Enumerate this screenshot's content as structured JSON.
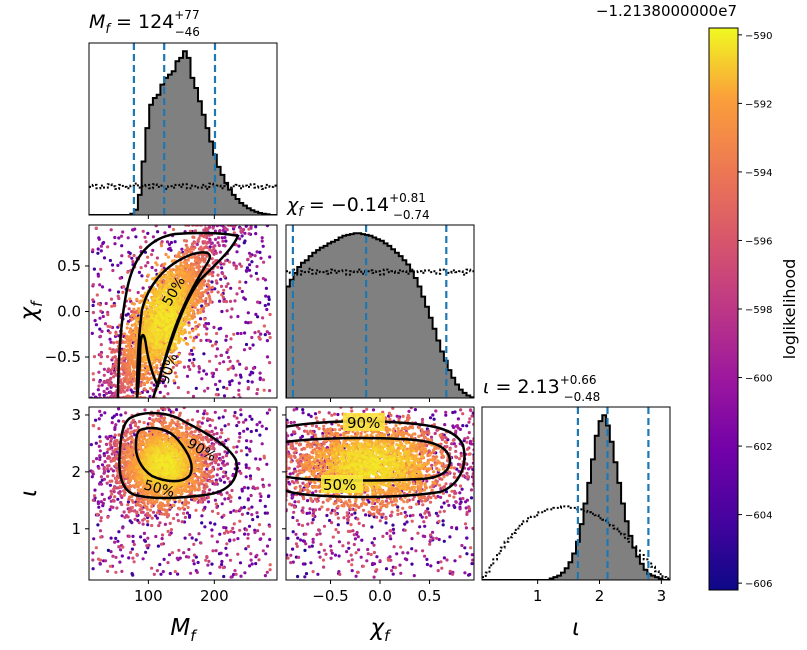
{
  "chart_data": {
    "type": "corner",
    "colorbar": {
      "label": "loglikelihood",
      "offset_text": "−1.2138000000e7",
      "ticks": [
        "−590",
        "−592",
        "−594",
        "−596",
        "−598",
        "−600",
        "−602",
        "−604",
        "−606"
      ],
      "range": [
        -606.2,
        -589.8
      ]
    },
    "params": [
      {
        "key": "Mf",
        "range": [
          10,
          295
        ],
        "ticks": [
          100,
          200
        ],
        "tick_labels": [
          "100",
          "200"
        ],
        "median": 124,
        "plus": 77,
        "minus": 46,
        "title_pre": "M",
        "title_sub": "f",
        "title_val": " = 124",
        "sup": "+77",
        "subv": "−46",
        "axis_sym": "M",
        "axis_sub": "f"
      },
      {
        "key": "chif",
        "range": [
          -0.95,
          0.95
        ],
        "ticks": [
          -0.5,
          0.0,
          0.5
        ],
        "tick_labels": [
          "−0.5",
          "0.0",
          "0.5"
        ],
        "median": -0.14,
        "plus": 0.81,
        "minus": 0.74,
        "title_pre": "χ",
        "title_sub": "f",
        "title_val": " = −0.14",
        "sup": "+0.81",
        "subv": "−0.74",
        "axis_sym": "χ",
        "axis_sub": "f"
      },
      {
        "key": "iota",
        "range": [
          0.1,
          3.14
        ],
        "ticks": [
          1,
          2,
          3
        ],
        "tick_labels": [
          "1",
          "2",
          "3"
        ],
        "median": 2.13,
        "plus": 0.66,
        "minus": 0.48,
        "title_pre": "ι",
        "title_sub": "",
        "title_val": " = 2.13",
        "sup": "+0.66",
        "subv": "−0.48",
        "axis_sym": "ι",
        "axis_sub": ""
      }
    ],
    "y_ticks": {
      "chif": [
        "0.5",
        "0.0",
        "−0.5"
      ],
      "iota": [
        "3",
        "2",
        "1"
      ]
    },
    "quantile_lines": {
      "Mf": [
        78,
        124,
        201
      ],
      "chif": [
        -0.88,
        -0.14,
        0.67
      ],
      "iota": [
        1.65,
        2.13,
        2.79
      ]
    },
    "contour_labels": [
      "50%",
      "90%"
    ],
    "histograms": {
      "Mf": {
        "edges_start": 10,
        "bin": 5.7,
        "posterior": [
          0,
          0,
          0,
          0,
          0,
          0,
          0,
          0,
          0,
          0,
          0,
          2,
          8,
          30,
          80,
          130,
          165,
          175,
          180,
          195,
          205,
          210,
          215,
          230,
          235,
          245,
          235,
          205,
          190,
          170,
          150,
          130,
          110,
          90,
          72,
          60,
          48,
          38,
          30,
          24,
          18,
          14,
          10,
          7,
          5,
          3,
          2,
          1,
          0,
          0
        ],
        "prior": [
          42,
          45,
          40,
          44,
          41,
          46,
          43,
          39,
          45,
          42,
          40,
          44,
          47,
          41,
          43,
          45,
          40,
          46,
          42,
          44,
          39,
          43,
          41,
          45,
          42,
          46,
          40,
          44,
          43,
          41,
          45,
          39,
          47,
          42,
          44,
          40,
          46,
          41,
          43,
          45,
          40,
          44,
          42,
          46,
          41,
          43,
          39,
          45,
          42,
          44
        ]
      },
      "chif": {
        "edges_start": -0.95,
        "bin": 0.038,
        "posterior": [
          132,
          140,
          148,
          155,
          160,
          163,
          168,
          172,
          175,
          178,
          180,
          183,
          185,
          187,
          190,
          192,
          193,
          194,
          195,
          195,
          194,
          193,
          192,
          190,
          188,
          186,
          183,
          180,
          176,
          172,
          168,
          163,
          158,
          150,
          142,
          132,
          120,
          108,
          95,
          82,
          68,
          55,
          44,
          33,
          24,
          16,
          10,
          6,
          3,
          1
        ],
        "prior": [
          150,
          148,
          152,
          146,
          150,
          149,
          153,
          147,
          151,
          149,
          150,
          147,
          152,
          148,
          150,
          151,
          146,
          150,
          149,
          152,
          147,
          150,
          151,
          148,
          150,
          146,
          152,
          149,
          150,
          148,
          151,
          150,
          147,
          152,
          149,
          150,
          148,
          151,
          149,
          150,
          147,
          152,
          150,
          148,
          151,
          149,
          150,
          146,
          152,
          150
        ]
      },
      "iota": {
        "edges_start": 0.1,
        "bin": 0.0608,
        "posterior": [
          0,
          0,
          0,
          0,
          0,
          0,
          0,
          0,
          0,
          0,
          0,
          0,
          0,
          0,
          0,
          0,
          0,
          0,
          1,
          2,
          3,
          5,
          8,
          12,
          18,
          26,
          38,
          52,
          66,
          82,
          98,
          108,
          112,
          105,
          94,
          80,
          66,
          52,
          40,
          30,
          22,
          16,
          11,
          7,
          4,
          3,
          2,
          1,
          0,
          0
        ],
        "prior": [
          2,
          5,
          10,
          14,
          18,
          22,
          26,
          29,
          32,
          35,
          38,
          40,
          42,
          43,
          44,
          46,
          47,
          48,
          48,
          49,
          49,
          50,
          50,
          49,
          49,
          48,
          48,
          47,
          46,
          45,
          44,
          42,
          41,
          39,
          37,
          35,
          33,
          31,
          28,
          26,
          23,
          20,
          17,
          14,
          12,
          9,
          6,
          4,
          2,
          1
        ]
      }
    }
  }
}
